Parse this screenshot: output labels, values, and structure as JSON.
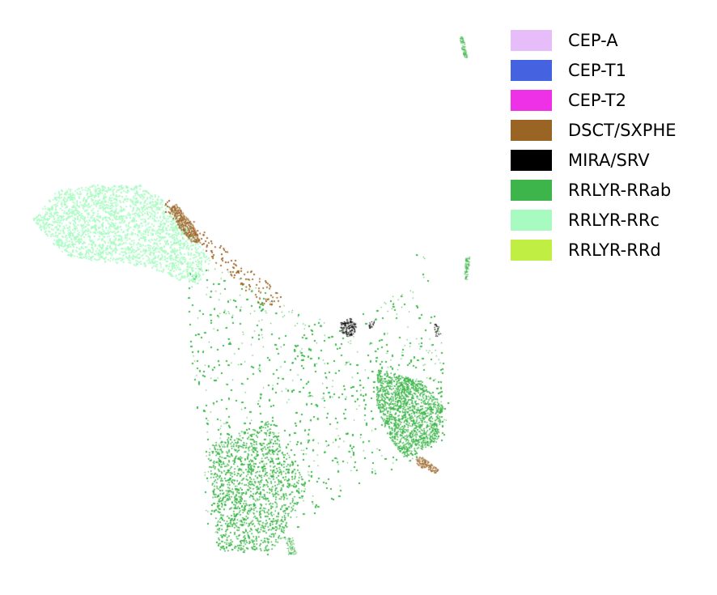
{
  "chart_data": {
    "type": "scatter",
    "title": "",
    "xlabel": "",
    "ylabel": "",
    "axes_visible": false,
    "grid": false,
    "legend": {
      "placement": "top-right",
      "entries": [
        {
          "label": "CEP-A",
          "color": "#e6bdf8"
        },
        {
          "label": "CEP-T1",
          "color": "#4563e0"
        },
        {
          "label": "CEP-T2",
          "color": "#ee30e6"
        },
        {
          "label": "DSCT/SXPHE",
          "color": "#9a6425"
        },
        {
          "label": "MIRA/SRV",
          "color": "#000000"
        },
        {
          "label": "RRLYR-RRab",
          "color": "#3db54a"
        },
        {
          "label": "RRLYR-RRc",
          "color": "#a8fbc0"
        },
        {
          "label": "RRLYR-RRd",
          "color": "#c1ee43"
        }
      ]
    },
    "series": [
      {
        "name": "RRLYR-RRab",
        "color": "#3db54a",
        "regions": [
          {
            "poly": [
              [
                230,
                330
              ],
              [
                300,
                330
              ],
              [
                345,
                375
              ],
              [
                425,
                400
              ],
              [
                470,
                375
              ],
              [
                505,
                340
              ],
              [
                522,
                296
              ],
              [
                528,
                340
              ],
              [
                545,
                420
              ],
              [
                555,
                500
              ],
              [
                548,
                545
              ],
              [
                510,
                570
              ],
              [
                440,
                600
              ],
              [
                380,
                640
              ],
              [
                330,
                686
              ],
              [
                272,
                680
              ],
              [
                250,
                640
              ],
              [
                250,
                560
              ],
              [
                240,
                480
              ],
              [
                232,
                400
              ]
            ],
            "density": 0.26,
            "count": 36000
          },
          {
            "poly": [
              [
                465,
                455
              ],
              [
                520,
                470
              ],
              [
                548,
                500
              ],
              [
                540,
                545
              ],
              [
                500,
                565
              ],
              [
                480,
                540
              ],
              [
                465,
                500
              ]
            ],
            "density": 0.5,
            "count": 4000
          },
          {
            "poly": [
              [
                255,
                550
              ],
              [
                330,
                520
              ],
              [
                380,
                600
              ],
              [
                340,
                680
              ],
              [
                270,
                680
              ]
            ],
            "density": 0.45,
            "count": 5000
          },
          {
            "poly": [
              [
                567,
                45
              ],
              [
                572,
                45
              ],
              [
                578,
                70
              ],
              [
                573,
                72
              ]
            ],
            "density": 1.0,
            "count": 80
          },
          {
            "poly": [
              [
                575,
                318
              ],
              [
                581,
                316
              ],
              [
                577,
                345
              ],
              [
                573,
                344
              ]
            ],
            "density": 1.0,
            "count": 80
          },
          {
            "poly": [
              [
                352,
                664
              ],
              [
                362,
                664
              ],
              [
                366,
                684
              ],
              [
                356,
                685
              ]
            ],
            "density": 1.0,
            "count": 70
          }
        ]
      },
      {
        "name": "RRLYR-RRc",
        "color": "#a8fbc0",
        "regions": [
          {
            "poly": [
              [
                40,
                270
              ],
              [
                70,
                235
              ],
              [
                120,
                228
              ],
              [
                175,
                228
              ],
              [
                200,
                245
              ],
              [
                230,
                280
              ],
              [
                260,
                320
              ],
              [
                245,
                350
              ],
              [
                220,
                345
              ],
              [
                185,
                330
              ],
              [
                150,
                325
              ],
              [
                115,
                322
              ],
              [
                80,
                315
              ],
              [
                55,
                290
              ]
            ],
            "density": 0.95,
            "count": 14000
          }
        ]
      },
      {
        "name": "DSCT/SXPHE",
        "color": "#9a6425",
        "regions": [
          {
            "poly": [
              [
                200,
                245
              ],
              [
                212,
                248
              ],
              [
                235,
                270
              ],
              [
                260,
                292
              ],
              [
                300,
                325
              ],
              [
                345,
                360
              ],
              [
                350,
                380
              ],
              [
                320,
                375
              ],
              [
                290,
                345
              ],
              [
                262,
                320
              ],
              [
                232,
                290
              ],
              [
                205,
                265
              ]
            ],
            "density": 0.18,
            "count": 1200
          },
          {
            "poly": [
              [
                208,
                255
              ],
              [
                218,
                252
              ],
              [
                240,
                280
              ],
              [
                248,
                300
              ],
              [
                236,
                298
              ],
              [
                220,
                280
              ]
            ],
            "density": 0.6,
            "count": 500
          },
          {
            "poly": [
              [
                512,
                565
              ],
              [
                520,
                563
              ],
              [
                542,
                580
              ],
              [
                538,
                585
              ],
              [
                515,
                575
              ]
            ],
            "density": 0.7,
            "count": 160
          }
        ]
      },
      {
        "name": "MIRA/SRV",
        "color": "#000000",
        "regions": [
          {
            "poly": [
              [
                420,
                398
              ],
              [
                432,
                392
              ],
              [
                440,
                400
              ],
              [
                438,
                412
              ],
              [
                428,
                416
              ],
              [
                420,
                408
              ]
            ],
            "density": 0.8,
            "count": 160
          },
          {
            "poly": [
              [
                455,
                398
              ],
              [
                462,
                396
              ],
              [
                462,
                404
              ],
              [
                456,
                406
              ]
            ],
            "density": 0.5,
            "count": 20
          },
          {
            "poly": [
              [
                535,
                400
              ],
              [
                542,
                398
              ],
              [
                544,
                412
              ],
              [
                538,
                416
              ]
            ],
            "density": 0.5,
            "count": 25
          }
        ]
      },
      {
        "name": "CEP-T1",
        "color": "#4563e0",
        "regions": []
      },
      {
        "name": "CEP-T2",
        "color": "#ee30e6",
        "regions": []
      },
      {
        "name": "CEP-A",
        "color": "#e6bdf8",
        "regions": []
      },
      {
        "name": "RRLYR-RRd",
        "color": "#c1ee43",
        "regions": []
      }
    ]
  }
}
